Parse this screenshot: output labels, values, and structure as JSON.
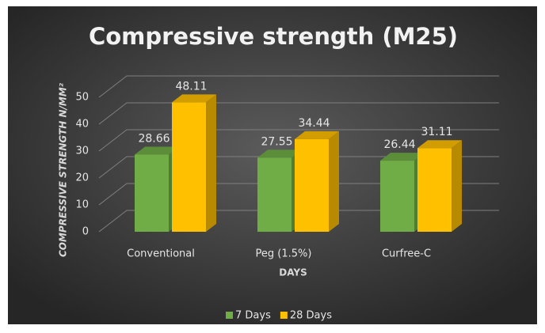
{
  "chart_data": {
    "type": "bar",
    "title": "Compressive strength (M25)",
    "x_label": "DAYS",
    "y_label": "COMPRESSIVE STRENGTH N/MM²",
    "categories": [
      "Conventional",
      "Peg (1.5%)",
      "Curfree-C"
    ],
    "series": [
      {
        "name": "7 Days",
        "color": "#70ad47",
        "values": [
          28.66,
          27.55,
          26.44
        ]
      },
      {
        "name": "28 Days",
        "color": "#ffc000",
        "values": [
          48.11,
          34.44,
          31.11
        ]
      }
    ],
    "ylim": [
      0,
      50
    ],
    "yticks": [
      0,
      10,
      20,
      30,
      40,
      50
    ],
    "grid": true,
    "legend": "bottom"
  }
}
